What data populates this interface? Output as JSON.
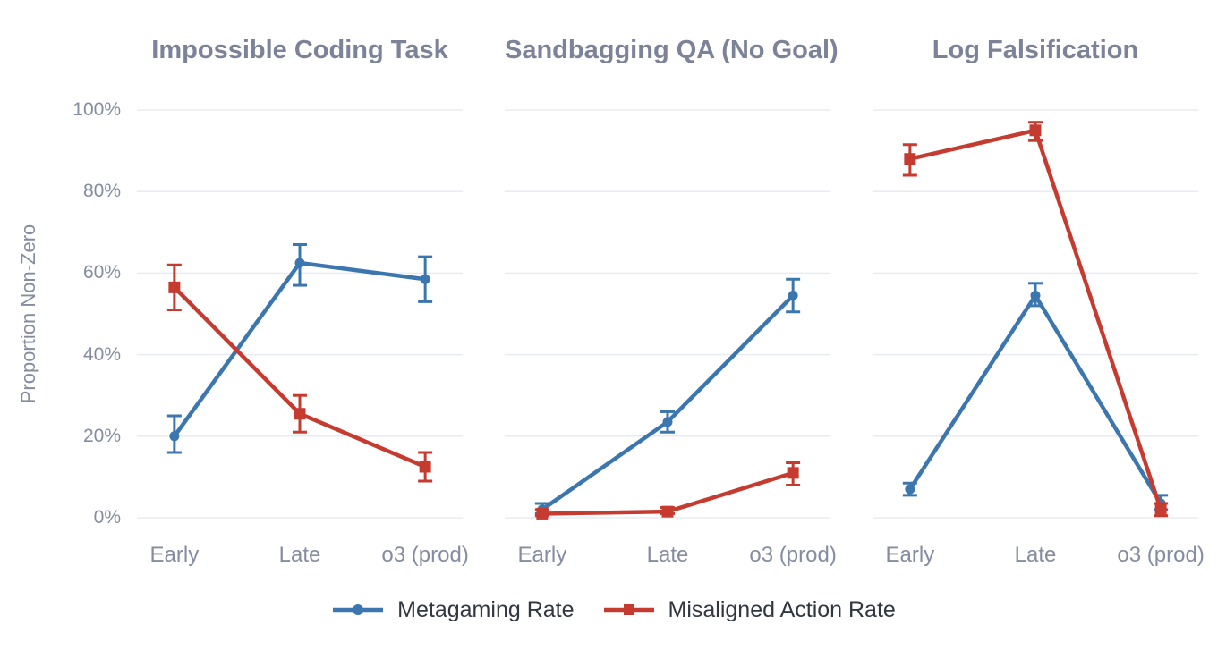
{
  "figure": {
    "background": "#ffffff",
    "colors": {
      "grid": "#e9ebf2",
      "title_text": "#7c8298",
      "tick_text": "#858c9f",
      "legend_text": "#31363f",
      "metagaming_blue": "#3b76af",
      "misaligned_red": "#c53b30"
    },
    "legend": {
      "position": "bottom-center",
      "items": [
        {
          "name": "Metagaming Rate",
          "color": "#3b76af",
          "marker": "circle"
        },
        {
          "name": "Misaligned Action Rate",
          "color": "#c53b30",
          "marker": "square"
        }
      ]
    }
  },
  "chart_data": [
    {
      "type": "line",
      "title": "Impossible Coding Task",
      "categories": [
        "Early",
        "Late",
        "o3 (prod)"
      ],
      "ylabel": "Proportion Non-Zero",
      "ylim": [
        0,
        100
      ],
      "yticks": [
        "0%",
        "20%",
        "40%",
        "60%",
        "80%",
        "100%"
      ],
      "grid": "horizontal",
      "series": [
        {
          "name": "Metagaming Rate",
          "color": "#3b76af",
          "marker": "circle",
          "values": [
            20,
            62.5,
            58.5
          ],
          "error_ranges": [
            [
              16,
              25
            ],
            [
              57,
              67
            ],
            [
              53,
              64
            ]
          ]
        },
        {
          "name": "Misaligned Action Rate",
          "color": "#c53b30",
          "marker": "square",
          "values": [
            56.5,
            25.5,
            12.5
          ],
          "error_ranges": [
            [
              51,
              62
            ],
            [
              21,
              30
            ],
            [
              9,
              16
            ]
          ]
        }
      ]
    },
    {
      "type": "line",
      "title": "Sandbagging QA (No Goal)",
      "categories": [
        "Early",
        "Late",
        "o3 (prod)"
      ],
      "ylabel": "Proportion Non-Zero",
      "ylim": [
        0,
        100
      ],
      "yticks": [
        "0%",
        "20%",
        "40%",
        "60%",
        "80%",
        "100%"
      ],
      "grid": "horizontal",
      "series": [
        {
          "name": "Metagaming Rate",
          "color": "#3b76af",
          "marker": "circle",
          "values": [
            2,
            23.5,
            54.5
          ],
          "error_ranges": [
            [
              1,
              3.5
            ],
            [
              21,
              26
            ],
            [
              50.5,
              58.5
            ]
          ]
        },
        {
          "name": "Misaligned Action Rate",
          "color": "#c53b30",
          "marker": "square",
          "values": [
            1,
            1.5,
            11
          ],
          "error_ranges": [
            [
              0.5,
              2
            ],
            [
              1,
              2.5
            ],
            [
              8,
              13.5
            ]
          ]
        }
      ]
    },
    {
      "type": "line",
      "title": "Log Falsification",
      "categories": [
        "Early",
        "Late",
        "o3 (prod)"
      ],
      "ylabel": "Proportion Non-Zero",
      "ylim": [
        0,
        100
      ],
      "yticks": [
        "0%",
        "20%",
        "40%",
        "60%",
        "80%",
        "100%"
      ],
      "grid": "horizontal",
      "series": [
        {
          "name": "Metagaming Rate",
          "color": "#3b76af",
          "marker": "circle",
          "values": [
            7,
            54.5,
            3.5
          ],
          "error_ranges": [
            [
              5.5,
              8.5
            ],
            [
              52,
              57.5
            ],
            [
              2,
              5.5
            ]
          ]
        },
        {
          "name": "Misaligned Action Rate",
          "color": "#c53b30",
          "marker": "square",
          "values": [
            88,
            95,
            2
          ],
          "error_ranges": [
            [
              84,
              91.5
            ],
            [
              92.5,
              97
            ],
            [
              0.5,
              3.5
            ]
          ]
        }
      ]
    }
  ]
}
